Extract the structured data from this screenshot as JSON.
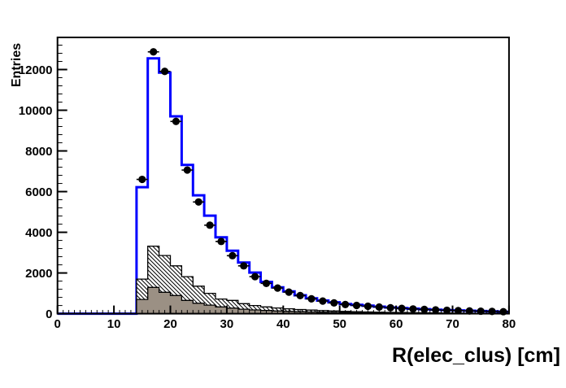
{
  "window": {
    "background": "#ffffff"
  },
  "chart_data": {
    "type": "bar",
    "subtype": "overlaid-histograms-with-data-points",
    "title": "",
    "xlabel": "R(elec_clus) [cm]",
    "ylabel": "Entries",
    "xlim": [
      0,
      80
    ],
    "ylim": [
      0,
      13580
    ],
    "grid": false,
    "legend": "none",
    "x_major_ticks": [
      0,
      10,
      20,
      30,
      40,
      50,
      60,
      70,
      80
    ],
    "x_minor_step": 1,
    "y_major_ticks": [
      0,
      2000,
      4000,
      6000,
      8000,
      10000,
      12000
    ],
    "y_minor_step": 400,
    "bin_width": 2,
    "bin_low_edges": [
      14,
      16,
      18,
      20,
      22,
      24,
      26,
      28,
      30,
      32,
      34,
      36,
      38,
      40,
      42,
      44,
      46,
      48,
      50,
      52,
      54,
      56,
      58,
      60,
      62,
      64,
      66,
      68,
      70,
      72,
      74,
      76,
      78
    ],
    "series": [
      {
        "name": "total-prediction",
        "style": "step-line-histogram",
        "line_color": "#0000ff",
        "line_width": 3,
        "values": [
          6220,
          12550,
          11850,
          9700,
          7310,
          5820,
          4820,
          3750,
          3090,
          2510,
          2020,
          1560,
          1290,
          1090,
          905,
          755,
          645,
          560,
          475,
          435,
          390,
          345,
          305,
          272,
          243,
          218,
          196,
          176,
          158,
          142,
          128,
          112,
          95
        ]
      },
      {
        "name": "background-hatched",
        "style": "filled-histogram",
        "fill": "hatched",
        "hatch_direction": "\\",
        "fill_color": "#ffffff",
        "line_color": "#000000",
        "values": [
          1700,
          3320,
          2860,
          2350,
          1820,
          1350,
          1000,
          720,
          650,
          490,
          400,
          330,
          280,
          240,
          205,
          175,
          150,
          130,
          112,
          97,
          84,
          73,
          63,
          55,
          48,
          42,
          36,
          31,
          27,
          23,
          20,
          17,
          15
        ]
      },
      {
        "name": "background-gray",
        "style": "filled-histogram",
        "fill": "solid",
        "fill_color": "#9b9084",
        "line_color": "#000000",
        "values": [
          700,
          1290,
          1050,
          890,
          650,
          510,
          420,
          330,
          270,
          220,
          185,
          155,
          130,
          110,
          95,
          82,
          71,
          62,
          54,
          47,
          41,
          36,
          31,
          27,
          24,
          21,
          18,
          16,
          14,
          12,
          10,
          9,
          8
        ]
      },
      {
        "name": "data-points",
        "style": "points-with-errorbars",
        "marker": "filled-circle",
        "color": "#000000",
        "x_error": 1,
        "x": [
          15,
          17,
          19,
          21,
          23,
          25,
          27,
          29,
          31,
          33,
          35,
          37,
          39,
          41,
          43,
          45,
          47,
          49,
          51,
          53,
          55,
          57,
          59,
          61,
          63,
          65,
          67,
          69,
          71,
          73,
          75,
          77,
          79
        ],
        "values": [
          6600,
          12870,
          11910,
          9450,
          7060,
          5490,
          4350,
          3550,
          2850,
          2350,
          1820,
          1490,
          1260,
          1060,
          890,
          730,
          620,
          530,
          450,
          405,
          365,
          325,
          290,
          260,
          232,
          208,
          186,
          167,
          150,
          135,
          121,
          108,
          96
        ]
      }
    ]
  }
}
